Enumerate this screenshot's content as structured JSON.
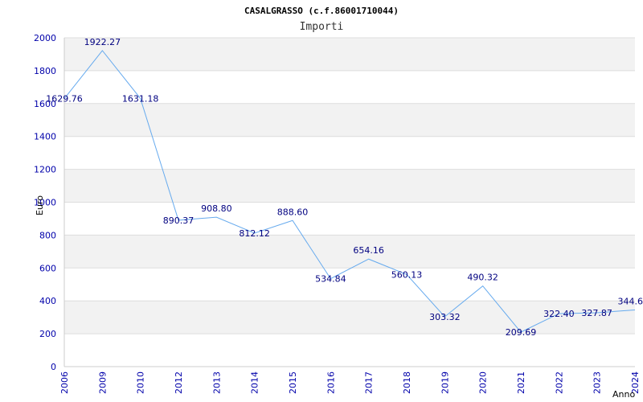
{
  "chart_data": {
    "type": "line",
    "title": "CASALGRASSO (c.f.86001710044)",
    "subtitle": "Importi",
    "xlabel": "Anno",
    "ylabel": "Euro",
    "categories": [
      "2006",
      "2009",
      "2010",
      "2012",
      "2013",
      "2014",
      "2015",
      "2016",
      "2017",
      "2018",
      "2019",
      "2020",
      "2021",
      "2022",
      "2023",
      "2024"
    ],
    "values": [
      1629.76,
      1922.27,
      1631.18,
      890.37,
      908.8,
      812.12,
      888.6,
      534.84,
      654.16,
      560.13,
      303.32,
      490.32,
      209.69,
      322.4,
      327.87,
      344.6
    ],
    "value_labels": [
      "1629.76",
      "1922.27",
      "1631.18",
      "890.37",
      "908.80",
      "812.12",
      "888.60",
      "534.84",
      "654.16",
      "560.13",
      "303.32",
      "490.32",
      "209.69",
      "322.40",
      "327.87",
      "344.6"
    ],
    "y_ticks": [
      0,
      200,
      400,
      600,
      800,
      1000,
      1200,
      1400,
      1600,
      1800,
      2000
    ],
    "ylim": [
      0,
      2000
    ],
    "grid": true,
    "line_color": "#66aaee",
    "band_color": "#f2f2f2"
  }
}
